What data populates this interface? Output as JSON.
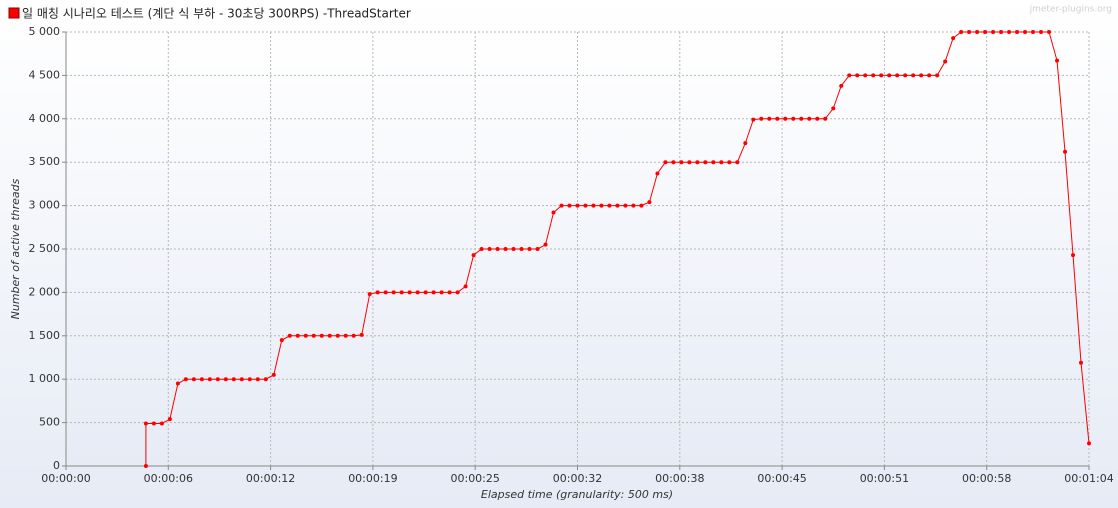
{
  "chart_data": {
    "type": "line",
    "watermark": "jmeter-plugins.org",
    "xlabel": "Elapsed time (granularity: 500 ms)",
    "ylabel": "Number of active threads",
    "legend": "top-left",
    "grid": true,
    "x": [
      5,
      5,
      5.5,
      6,
      6.5,
      7,
      7.5,
      8,
      8.5,
      9,
      9.5,
      10,
      10.5,
      11,
      11.5,
      12,
      12.5,
      13,
      13.5,
      14,
      14.5,
      15,
      15.5,
      16,
      16.5,
      17,
      17.5,
      18,
      18.5,
      19,
      19.5,
      20,
      20.5,
      21,
      21.5,
      22,
      22.5,
      23,
      23.5,
      24,
      24.5,
      25,
      25.5,
      26,
      26.5,
      27,
      27.5,
      28,
      28.5,
      29,
      29.5,
      30,
      30.5,
      31,
      31.5,
      32,
      32.5,
      33,
      33.5,
      34,
      34.5,
      35,
      35.5,
      36,
      36.5,
      37,
      37.5,
      38,
      38.5,
      39,
      39.5,
      40,
      40.5,
      41,
      41.5,
      42,
      42.5,
      43,
      43.5,
      44,
      44.5,
      45,
      45.5,
      46,
      46.5,
      47,
      47.5,
      48,
      48.5,
      49,
      49.5,
      50,
      50.5,
      51,
      51.5,
      52,
      52.5,
      53,
      53.5,
      54,
      54.5,
      55,
      55.5,
      56,
      56.5,
      57,
      57.5,
      58,
      58.5,
      59,
      59.5,
      60,
      60.5,
      61,
      61.5,
      62,
      62.5,
      63,
      63.5,
      64
    ],
    "series": [
      {
        "name": "일 매칭 시나리오 테스트 (계단 식 부하 - 30초당 300RPS) -ThreadStarter",
        "color": "#ff0000",
        "values": [
          0,
          490,
          490,
          490,
          540,
          950,
          1000,
          1000,
          1000,
          1000,
          1000,
          1000,
          1000,
          1000,
          1000,
          1000,
          1000,
          1050,
          1450,
          1500,
          1500,
          1500,
          1500,
          1500,
          1500,
          1500,
          1500,
          1500,
          1510,
          1980,
          2000,
          2000,
          2000,
          2000,
          2000,
          2000,
          2000,
          2000,
          2000,
          2000,
          2000,
          2070,
          2430,
          2500,
          2500,
          2500,
          2500,
          2500,
          2500,
          2500,
          2500,
          2550,
          2920,
          3000,
          3000,
          3000,
          3000,
          3000,
          3000,
          3000,
          3000,
          3000,
          3000,
          3000,
          3040,
          3370,
          3500,
          3500,
          3500,
          3500,
          3500,
          3500,
          3500,
          3500,
          3500,
          3500,
          3720,
          3990,
          4000,
          4000,
          4000,
          4000,
          4000,
          4000,
          4000,
          4000,
          4000,
          4120,
          4380,
          4500,
          4500,
          4500,
          4500,
          4500,
          4500,
          4500,
          4500,
          4500,
          4500,
          4500,
          4500,
          4660,
          4930,
          5000,
          5000,
          5000,
          5000,
          5000,
          5000,
          5000,
          5000,
          5000,
          5000,
          5000,
          5000,
          4670,
          3620,
          2430,
          1190,
          260
        ]
      }
    ],
    "xlim": [
      0,
      64
    ],
    "xticks": [
      {
        "value": 0,
        "label": "00:00:00"
      },
      {
        "value": 6.4,
        "label": "00:00:06"
      },
      {
        "value": 12.8,
        "label": "00:00:12"
      },
      {
        "value": 19.2,
        "label": "00:00:19"
      },
      {
        "value": 25.6,
        "label": "00:00:25"
      },
      {
        "value": 32,
        "label": "00:00:32"
      },
      {
        "value": 38.4,
        "label": "00:00:38"
      },
      {
        "value": 44.8,
        "label": "00:00:45"
      },
      {
        "value": 51.2,
        "label": "00:00:51"
      },
      {
        "value": 57.6,
        "label": "00:00:58"
      },
      {
        "value": 64,
        "label": "00:01:04"
      }
    ],
    "ylim": [
      0,
      5000
    ],
    "yticks": [
      0,
      500,
      {
        "value": 1000,
        "label": "1 000"
      },
      {
        "value": 1500,
        "label": "1 500"
      },
      {
        "value": 2000,
        "label": "2 000"
      },
      {
        "value": 2500,
        "label": "2 500"
      },
      {
        "value": 3000,
        "label": "3 000"
      },
      {
        "value": 3500,
        "label": "3 500"
      },
      {
        "value": 4000,
        "label": "4 000"
      },
      {
        "value": 4500,
        "label": "4 500"
      },
      {
        "value": 5000,
        "label": "5 000"
      }
    ]
  }
}
